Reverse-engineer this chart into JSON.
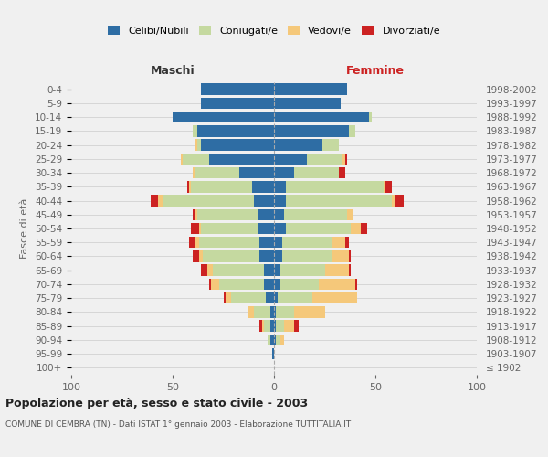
{
  "age_groups": [
    "100+",
    "95-99",
    "90-94",
    "85-89",
    "80-84",
    "75-79",
    "70-74",
    "65-69",
    "60-64",
    "55-59",
    "50-54",
    "45-49",
    "40-44",
    "35-39",
    "30-34",
    "25-29",
    "20-24",
    "15-19",
    "10-14",
    "5-9",
    "0-4"
  ],
  "birth_years": [
    "≤ 1902",
    "1903-1907",
    "1908-1912",
    "1913-1917",
    "1918-1922",
    "1923-1927",
    "1928-1932",
    "1933-1937",
    "1938-1942",
    "1943-1947",
    "1948-1952",
    "1953-1957",
    "1958-1962",
    "1963-1967",
    "1968-1972",
    "1973-1977",
    "1978-1982",
    "1983-1987",
    "1988-1992",
    "1993-1997",
    "1998-2002"
  ],
  "maschi": {
    "celibi": [
      0,
      1,
      2,
      2,
      2,
      4,
      5,
      5,
      7,
      7,
      8,
      8,
      10,
      11,
      17,
      32,
      36,
      38,
      50,
      36,
      36
    ],
    "coniugati": [
      0,
      0,
      1,
      3,
      8,
      17,
      22,
      25,
      28,
      30,
      28,
      30,
      45,
      30,
      22,
      13,
      2,
      2,
      0,
      0,
      0
    ],
    "vedovi": [
      0,
      0,
      0,
      1,
      3,
      3,
      4,
      3,
      2,
      2,
      1,
      1,
      2,
      1,
      1,
      1,
      1,
      0,
      0,
      0,
      0
    ],
    "divorziati": [
      0,
      0,
      0,
      1,
      0,
      1,
      1,
      3,
      3,
      3,
      4,
      1,
      4,
      1,
      0,
      0,
      0,
      0,
      0,
      0,
      0
    ]
  },
  "femmine": {
    "nubili": [
      0,
      0,
      1,
      1,
      1,
      2,
      3,
      3,
      4,
      4,
      6,
      5,
      6,
      6,
      10,
      16,
      24,
      37,
      47,
      33,
      36
    ],
    "coniugate": [
      0,
      0,
      2,
      4,
      9,
      17,
      19,
      22,
      25,
      25,
      32,
      31,
      52,
      48,
      22,
      18,
      8,
      3,
      1,
      0,
      0
    ],
    "vedove": [
      0,
      0,
      2,
      5,
      15,
      22,
      18,
      12,
      8,
      6,
      5,
      3,
      2,
      1,
      0,
      1,
      0,
      0,
      0,
      0,
      0
    ],
    "divorziate": [
      0,
      0,
      0,
      2,
      0,
      0,
      1,
      1,
      1,
      2,
      3,
      0,
      4,
      3,
      3,
      1,
      0,
      0,
      0,
      0,
      0
    ]
  },
  "colors": {
    "celibi": "#2e6da4",
    "coniugati": "#c5d9a0",
    "vedovi": "#f5c87a",
    "divorziati": "#cc2222"
  },
  "xlim": 100,
  "title": "Popolazione per età, sesso e stato civile - 2003",
  "subtitle": "COMUNE DI CEMBRA (TN) - Dati ISTAT 1° gennaio 2003 - Elaborazione TUTTITALIA.IT",
  "ylabel_left": "Fasce di età",
  "xlabel_left": "Maschi",
  "xlabel_right": "Femmine",
  "bg_color": "#f0f0f0",
  "plot_bg": "#f0f0f0",
  "legend_labels": [
    "Celibi/Nubili",
    "Coniugati/e",
    "Vedovi/e",
    "Divorziati/e"
  ]
}
